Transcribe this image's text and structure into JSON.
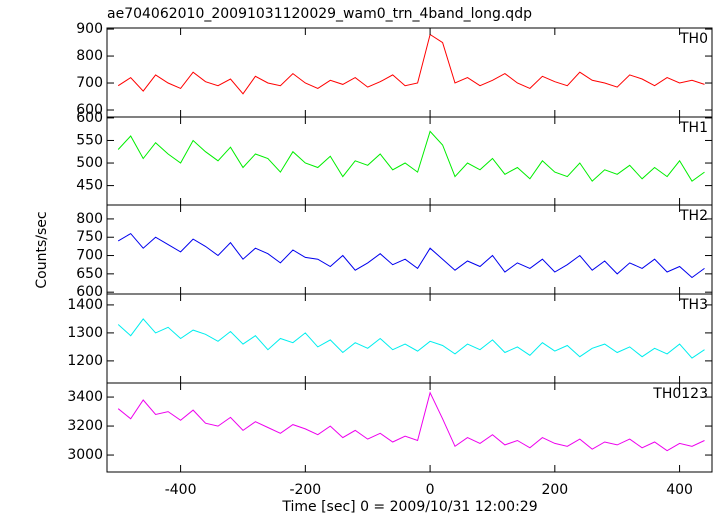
{
  "chart_data": [
    {
      "type": "line",
      "title": "ae704062010_20091031120029_wam0_trn_4band_long.qdp",
      "x": [
        -500,
        -480,
        -460,
        -440,
        -420,
        -400,
        -380,
        -360,
        -340,
        -320,
        -300,
        -280,
        -260,
        -240,
        -220,
        -200,
        -180,
        -160,
        -140,
        -120,
        -100,
        -80,
        -60,
        -40,
        -20,
        0,
        20,
        40,
        60,
        80,
        100,
        120,
        140,
        160,
        180,
        200,
        220,
        240,
        260,
        280,
        300,
        320,
        340,
        360,
        380,
        400,
        420,
        440
      ],
      "xlim": [
        -518,
        452
      ],
      "ylim": [
        574,
        904
      ],
      "yticks": [
        600,
        700,
        800,
        900
      ],
      "series": [
        {
          "name": "TH0",
          "color": "#ff0000",
          "values": [
            690,
            720,
            670,
            730,
            700,
            680,
            740,
            705,
            690,
            715,
            660,
            725,
            700,
            690,
            735,
            700,
            680,
            710,
            695,
            720,
            685,
            705,
            730,
            690,
            700,
            880,
            850,
            700,
            720,
            690,
            710,
            735,
            700,
            680,
            725,
            705,
            690,
            740,
            710,
            700,
            685,
            730,
            715,
            690,
            720,
            700,
            710,
            695
          ]
        }
      ]
    },
    {
      "type": "line",
      "x": [
        -500,
        -480,
        -460,
        -440,
        -420,
        -400,
        -380,
        -360,
        -340,
        -320,
        -300,
        -280,
        -260,
        -240,
        -220,
        -200,
        -180,
        -160,
        -140,
        -120,
        -100,
        -80,
        -60,
        -40,
        -20,
        0,
        20,
        40,
        60,
        80,
        100,
        120,
        140,
        160,
        180,
        200,
        220,
        240,
        260,
        280,
        300,
        320,
        340,
        360,
        380,
        400,
        420,
        440
      ],
      "xlim": [
        -518,
        452
      ],
      "ylim": [
        407,
        602
      ],
      "yticks": [
        450,
        500,
        550,
        600
      ],
      "series": [
        {
          "name": "TH1",
          "color": "#00ee00",
          "values": [
            530,
            560,
            510,
            545,
            520,
            500,
            550,
            525,
            505,
            535,
            490,
            520,
            510,
            480,
            525,
            500,
            490,
            515,
            470,
            505,
            495,
            520,
            485,
            500,
            480,
            570,
            540,
            470,
            500,
            485,
            510,
            475,
            490,
            465,
            505,
            480,
            470,
            500,
            460,
            485,
            475,
            495,
            465,
            490,
            470,
            505,
            460,
            480
          ]
        }
      ]
    },
    {
      "type": "line",
      "ylabel": "Counts/sec",
      "x": [
        -500,
        -480,
        -460,
        -440,
        -420,
        -400,
        -380,
        -360,
        -340,
        -320,
        -300,
        -280,
        -260,
        -240,
        -220,
        -200,
        -180,
        -160,
        -140,
        -120,
        -100,
        -80,
        -60,
        -40,
        -20,
        0,
        20,
        40,
        60,
        80,
        100,
        120,
        140,
        160,
        180,
        200,
        220,
        240,
        260,
        280,
        300,
        320,
        340,
        360,
        380,
        400,
        420,
        440
      ],
      "xlim": [
        -518,
        452
      ],
      "ylim": [
        595,
        838
      ],
      "yticks": [
        600,
        650,
        700,
        750,
        800
      ],
      "series": [
        {
          "name": "TH2",
          "color": "#0000ee",
          "values": [
            740,
            760,
            720,
            750,
            730,
            710,
            745,
            725,
            700,
            735,
            690,
            720,
            705,
            680,
            715,
            695,
            690,
            670,
            700,
            660,
            680,
            705,
            675,
            690,
            665,
            720,
            690,
            660,
            685,
            670,
            700,
            655,
            680,
            665,
            690,
            655,
            675,
            700,
            660,
            685,
            650,
            680,
            665,
            690,
            655,
            670,
            640,
            665
          ]
        }
      ]
    },
    {
      "type": "line",
      "x": [
        -500,
        -480,
        -460,
        -440,
        -420,
        -400,
        -380,
        -360,
        -340,
        -320,
        -300,
        -280,
        -260,
        -240,
        -220,
        -200,
        -180,
        -160,
        -140,
        -120,
        -100,
        -80,
        -60,
        -40,
        -20,
        0,
        20,
        40,
        60,
        80,
        100,
        120,
        140,
        160,
        180,
        200,
        220,
        240,
        260,
        280,
        300,
        320,
        340,
        360,
        380,
        400,
        420,
        440
      ],
      "xlim": [
        -518,
        452
      ],
      "ylim": [
        1121,
        1439
      ],
      "yticks": [
        1200,
        1300,
        1400
      ],
      "series": [
        {
          "name": "TH3",
          "color": "#00eeee",
          "values": [
            1330,
            1290,
            1350,
            1300,
            1320,
            1280,
            1310,
            1295,
            1270,
            1305,
            1260,
            1290,
            1240,
            1280,
            1265,
            1300,
            1250,
            1275,
            1230,
            1265,
            1245,
            1280,
            1240,
            1260,
            1235,
            1270,
            1255,
            1225,
            1260,
            1240,
            1275,
            1230,
            1250,
            1220,
            1265,
            1235,
            1255,
            1215,
            1245,
            1260,
            1230,
            1250,
            1215,
            1245,
            1225,
            1260,
            1210,
            1240
          ]
        }
      ]
    },
    {
      "type": "line",
      "xlabel": "Time [sec] 0 = 2009/10/31 12:00:29",
      "x": [
        -500,
        -480,
        -460,
        -440,
        -420,
        -400,
        -380,
        -360,
        -340,
        -320,
        -300,
        -280,
        -260,
        -240,
        -220,
        -200,
        -180,
        -160,
        -140,
        -120,
        -100,
        -80,
        -60,
        -40,
        -20,
        0,
        20,
        40,
        60,
        80,
        100,
        120,
        140,
        160,
        180,
        200,
        220,
        240,
        260,
        280,
        300,
        320,
        340,
        360,
        380,
        400,
        420,
        440
      ],
      "xlim": [
        -518,
        452
      ],
      "xticks": [
        -400,
        -200,
        0,
        200,
        400
      ],
      "ylim": [
        2883,
        3497
      ],
      "yticks": [
        3000,
        3200,
        3400
      ],
      "series": [
        {
          "name": "TH0123",
          "color": "#ee00ee",
          "values": [
            3320,
            3250,
            3380,
            3280,
            3300,
            3240,
            3310,
            3220,
            3200,
            3260,
            3170,
            3230,
            3190,
            3150,
            3210,
            3180,
            3140,
            3200,
            3120,
            3170,
            3110,
            3150,
            3090,
            3130,
            3100,
            3430,
            3250,
            3060,
            3120,
            3080,
            3140,
            3070,
            3100,
            3050,
            3120,
            3080,
            3060,
            3110,
            3040,
            3090,
            3070,
            3110,
            3050,
            3090,
            3030,
            3080,
            3060,
            3100
          ]
        }
      ]
    }
  ]
}
